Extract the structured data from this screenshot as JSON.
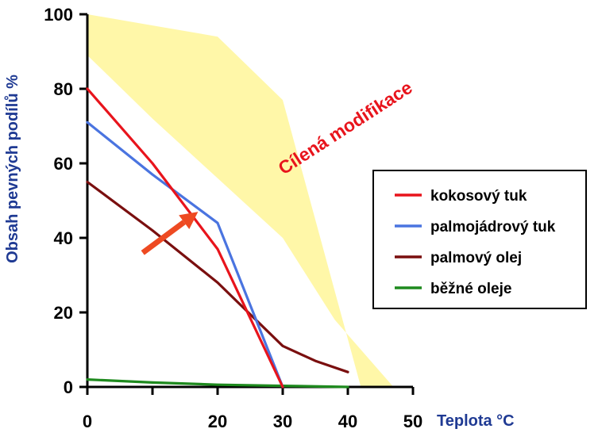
{
  "chart_data": {
    "type": "line",
    "xlabel": "Teplota °C",
    "ylabel": "Obsah pevných podílů %",
    "xlim": [
      0,
      50
    ],
    "ylim": [
      0,
      100
    ],
    "x_ticks": [
      0,
      10,
      20,
      30,
      40,
      50
    ],
    "x_tick_labels": [
      "0",
      "",
      "20",
      "30",
      "40",
      "50"
    ],
    "y_ticks": [
      0,
      20,
      40,
      60,
      80,
      100
    ],
    "y_tick_labels": [
      "0",
      "20",
      "40",
      "60",
      "80",
      "100"
    ],
    "grid": false,
    "legend_position": "right",
    "series": [
      {
        "name": "kokosový tuk",
        "color": "#e8141c",
        "x": [
          0,
          10,
          20,
          30
        ],
        "y": [
          80,
          60,
          37,
          0
        ]
      },
      {
        "name": "palmojádrový tuk",
        "color": "#4a74e0",
        "x": [
          0,
          10,
          20,
          30
        ],
        "y": [
          71,
          57,
          44,
          0
        ]
      },
      {
        "name": "palmový olej",
        "color": "#7a0f0f",
        "x": [
          0,
          10,
          20,
          30,
          35,
          40
        ],
        "y": [
          55,
          42,
          28,
          11,
          7,
          4
        ]
      },
      {
        "name": "běžné oleje",
        "color": "#1e8a1e",
        "x": [
          0,
          10,
          20,
          30,
          40
        ],
        "y": [
          2,
          1.2,
          0.6,
          0.3,
          0
        ]
      }
    ],
    "band": {
      "color": "#fff7a8",
      "upper": {
        "x": [
          0,
          10,
          20,
          30,
          42
        ],
        "y": [
          100,
          97,
          94,
          77,
          0
        ]
      },
      "lower": {
        "x": [
          0,
          10,
          20,
          30,
          38,
          47
        ],
        "y": [
          89,
          72,
          56,
          40,
          18,
          0
        ]
      }
    },
    "annotations": [
      {
        "text": "Cílená modifikace",
        "color": "#e8141c"
      }
    ],
    "arrow": {
      "from": {
        "x": 8.5,
        "y": 36
      },
      "to": {
        "x": 17,
        "y": 47
      },
      "color": "#ee4a22"
    }
  }
}
